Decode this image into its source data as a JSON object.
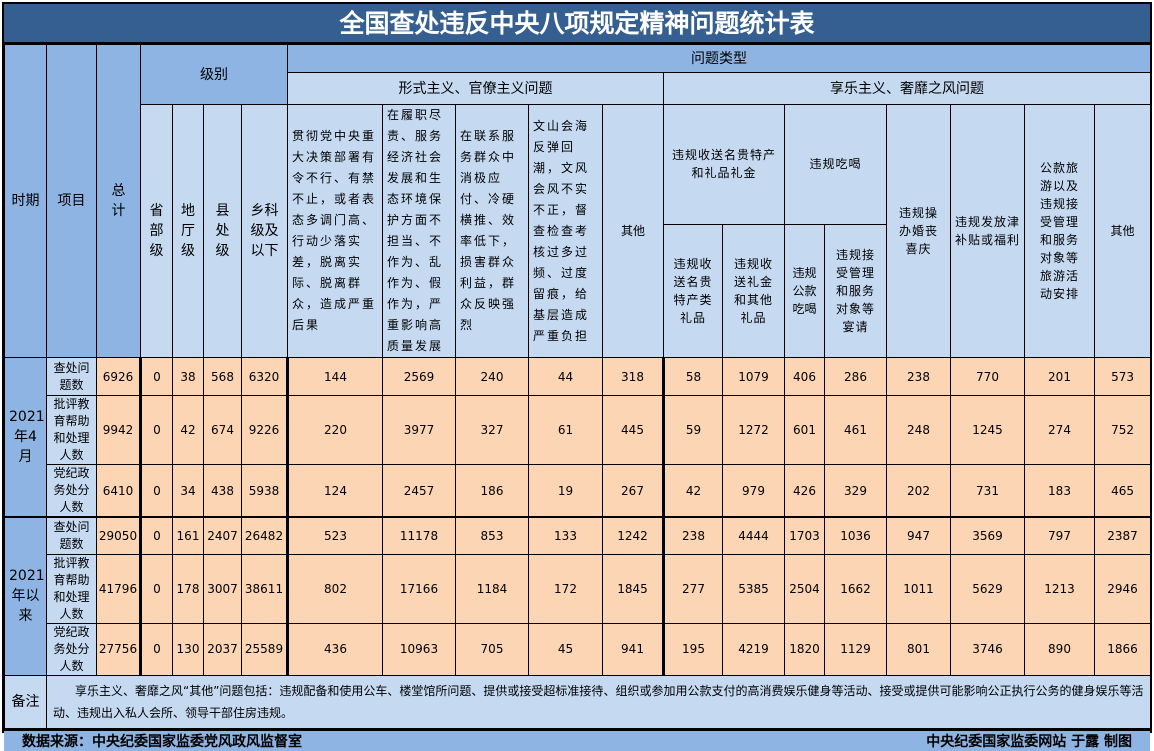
{
  "title": "全国查处违反中央八项规定精神问题统计表",
  "header": {
    "period": "时期",
    "item": "项目",
    "total": "总计",
    "level": "级别",
    "levels": [
      "省部级",
      "地厅级",
      "县处级",
      "乡科级及以下"
    ],
    "problem_type": "问题类型",
    "formalism": "形式主义、官僚主义问题",
    "hedonism": "享乐主义、奢靡之风问题",
    "formalism_cols": [
      "贯彻党中央重大决策部署有令不行、有禁不止，或者表态多调门高、行动少落实差，脱离实际、脱离群众，造成严重后果",
      "在履职尽责、服务经济社会发展和生态环境保护方面不担当、不作为、乱作为、假作为，严重影响高质量发展",
      "在联系服务群众中消极应付、冷硬横推、效率低下，损害群众利益，群众反映强烈",
      "文山会海反弹回潮，文风会风不实不正，督查检查考核过多过频、过度留痕，给基层造成严重负担",
      "其他"
    ],
    "gift_group": "违规收送名贵特产和礼品礼金",
    "gift_cols": [
      "违规收送名贵特产类礼品",
      "违规收送礼金和其他礼品"
    ],
    "dining_group": "违规吃喝",
    "dining_cols": [
      "违规公款吃喝",
      "违规接受管理和服务对象等宴请"
    ],
    "hedonism_cols": [
      "违规操办婚丧喜庆",
      "违规发放津补贴或福利",
      "公款旅游以及违规接受管理和服务对象等旅游活动安排",
      "其他"
    ]
  },
  "groups": [
    {
      "period": "2021年4月",
      "rows": [
        {
          "item": "查处问题数",
          "values": [
            "6926",
            "0",
            "38",
            "568",
            "6320",
            "144",
            "2569",
            "240",
            "44",
            "318",
            "58",
            "1079",
            "406",
            "286",
            "238",
            "770",
            "201",
            "573"
          ]
        },
        {
          "item": "批评教育帮助和处理人数",
          "values": [
            "9942",
            "0",
            "42",
            "674",
            "9226",
            "220",
            "3977",
            "327",
            "61",
            "445",
            "59",
            "1272",
            "601",
            "461",
            "248",
            "1245",
            "274",
            "752"
          ]
        },
        {
          "item": "党纪政务处分人数",
          "values": [
            "6410",
            "0",
            "34",
            "438",
            "5938",
            "124",
            "2457",
            "186",
            "19",
            "267",
            "42",
            "979",
            "426",
            "329",
            "202",
            "731",
            "183",
            "465"
          ]
        }
      ]
    },
    {
      "period": "2021年以来",
      "rows": [
        {
          "item": "查处问题数",
          "values": [
            "29050",
            "0",
            "161",
            "2407",
            "26482",
            "523",
            "11178",
            "853",
            "133",
            "1242",
            "238",
            "4444",
            "1703",
            "1036",
            "947",
            "3569",
            "797",
            "2387"
          ]
        },
        {
          "item": "批评教育帮助和处理人数",
          "values": [
            "41796",
            "0",
            "178",
            "3007",
            "38611",
            "802",
            "17166",
            "1184",
            "172",
            "1845",
            "277",
            "5385",
            "2504",
            "1662",
            "1011",
            "5629",
            "1213",
            "2946"
          ]
        },
        {
          "item": "党纪政务处分人数",
          "values": [
            "27756",
            "0",
            "130",
            "2037",
            "25589",
            "436",
            "10963",
            "705",
            "45",
            "941",
            "195",
            "4219",
            "1820",
            "1129",
            "801",
            "3746",
            "890",
            "1866"
          ]
        }
      ]
    }
  ],
  "note": {
    "label": "备注",
    "text": "享乐主义、奢靡之风“其他”问题包括：违规配备和使用公车、楼堂馆所问题、提供或接受超标准接待、组织或参加用公款支付的高消费娱乐健身等活动、接受或提供可能影响公正执行公务的健身娱乐等活动、违规出入私人会所、领导干部住房违规。"
  },
  "footer": {
    "source": "数据来源：中央纪委国家监委党风政风监督室",
    "credit": "中央纪委国家监委网站 于露 制图"
  },
  "colors": {
    "title_bg": "#365f91",
    "header_dark": "#8db4e2",
    "header_light": "#c5d9f1",
    "data_bg": "#fcd5b4"
  }
}
